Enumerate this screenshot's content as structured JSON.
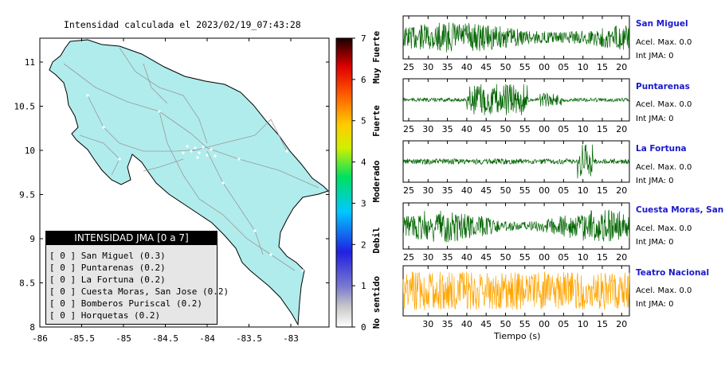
{
  "map": {
    "title": "Intensidad calculada el 2023/02/19_07:43:28",
    "x_ticks": [
      "-86",
      "-85.5",
      "-85",
      "-84.5",
      "-84",
      "-83.5",
      "-83"
    ],
    "y_ticks": [
      "11",
      "10.5",
      "10",
      "9.5",
      "9",
      "8.5",
      "8"
    ],
    "land_color": "#b0ecec",
    "legend": {
      "title": "INTENSIDAD JMA [0 a 7]",
      "items": [
        "[ 0 ]  San Miguel (0.3)",
        "[ 0 ]  Puntarenas (0.2)",
        "[ 0 ]  La Fortuna (0.2)",
        "[ 0 ]  Cuesta Moras, San Jose (0.2)",
        "[ 0 ]  Bomberos Puriscal (0.2)",
        "[ 0 ]  Horquetas (0.2)"
      ]
    }
  },
  "scale": {
    "ticks": [
      "0",
      "1",
      "2",
      "3",
      "4",
      "5",
      "6",
      "7"
    ],
    "labels": [
      "No sentido",
      "Debil",
      "Moderado",
      "Fuerte",
      "Muy Fuerte"
    ]
  },
  "traces": {
    "x_ticks": [
      "25",
      "30",
      "35",
      "40",
      "45",
      "50",
      "55",
      "00",
      "05",
      "10",
      "15",
      "20"
    ],
    "x_label": "Tiempo (s)",
    "stations": [
      {
        "name": "San Miguel",
        "acel": "Acel. Max. 0.0",
        "jma": "Int JMA: 0",
        "color": "#006400"
      },
      {
        "name": "Puntarenas",
        "acel": "Acel. Max. 0.0",
        "jma": "Int JMA: 0",
        "color": "#006400"
      },
      {
        "name": "La Fortuna",
        "acel": "Acel. Max. 0.0",
        "jma": "Int JMA: 0",
        "color": "#006400"
      },
      {
        "name": "Cuesta Moras, San Jose",
        "acel": "Acel. Max. 0.0",
        "jma": "Int JMA: 0",
        "color": "#006400"
      },
      {
        "name": "Teatro Nacional",
        "acel": "Acel. Max. 0.0",
        "jma": "Int JMA: 0",
        "color": "#ffa500"
      }
    ]
  },
  "chart_data": [
    {
      "type": "scatter",
      "title": "Intensidad calculada el 2023/02/19_07:43:28",
      "xlim": [
        -86,
        -82.6
      ],
      "ylim": [
        8,
        11.3
      ],
      "series": [
        {
          "name": "San Miguel",
          "intensity": 0.3
        },
        {
          "name": "Puntarenas",
          "intensity": 0.2
        },
        {
          "name": "La Fortuna",
          "intensity": 0.2
        },
        {
          "name": "Cuesta Moras, San Jose",
          "intensity": 0.2
        },
        {
          "name": "Bomberos Puriscal",
          "intensity": 0.2
        },
        {
          "name": "Horquetas",
          "intensity": 0.2
        }
      ],
      "legend": "bottom-left"
    },
    {
      "type": "heatmap",
      "title": "",
      "ylim": [
        0,
        7
      ],
      "labels": [
        "No sentido",
        "Debil",
        "Moderado",
        "Fuerte",
        "Muy Fuerte"
      ]
    },
    {
      "type": "line",
      "xlabel": "Tiempo (s)",
      "categories": [
        "25",
        "30",
        "35",
        "40",
        "45",
        "50",
        "55",
        "00",
        "05",
        "10",
        "15",
        "20"
      ],
      "series": [
        {
          "name": "San Miguel",
          "acel_max": 0.0,
          "int_jma": 0
        },
        {
          "name": "Puntarenas",
          "acel_max": 0.0,
          "int_jma": 0
        },
        {
          "name": "La Fortuna",
          "acel_max": 0.0,
          "int_jma": 0
        },
        {
          "name": "Cuesta Moras, San Jose",
          "acel_max": 0.0,
          "int_jma": 0
        },
        {
          "name": "Teatro Nacional",
          "acel_max": 0.0,
          "int_jma": 0
        }
      ]
    }
  ]
}
